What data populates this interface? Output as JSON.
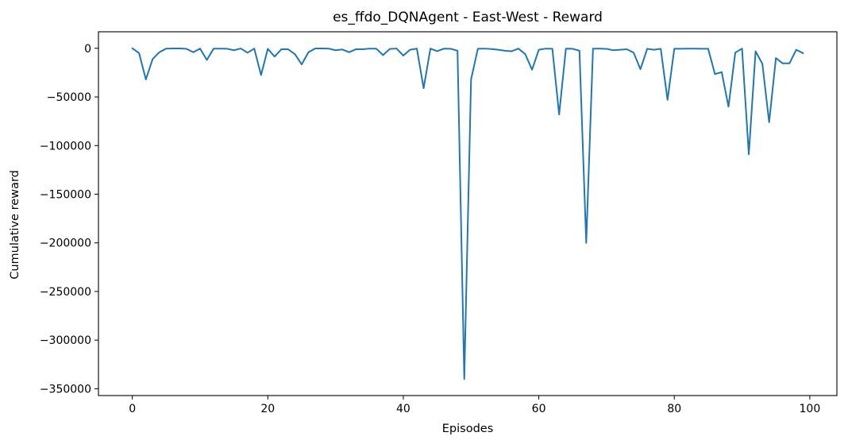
{
  "chart_data": {
    "type": "line",
    "title": "es_ffdo_DQNAgent - East-West - Reward",
    "xlabel": "Episodes",
    "ylabel": "Cumulative reward",
    "xlim": [
      -5,
      104
    ],
    "ylim": [
      -357000,
      17000
    ],
    "xticks": [
      0,
      20,
      40,
      60,
      80,
      100
    ],
    "xtick_labels": [
      "0",
      "20",
      "40",
      "60",
      "80",
      "100"
    ],
    "yticks": [
      0,
      -50000,
      -100000,
      -150000,
      -200000,
      -250000,
      -300000,
      -350000
    ],
    "ytick_labels": [
      "0",
      "−50000",
      "−100000",
      "−150000",
      "−200000",
      "−250000",
      "−300000",
      "−350000"
    ],
    "grid": false,
    "series": [
      {
        "color": "#1f77b4",
        "x": [
          0,
          1,
          2,
          3,
          4,
          5,
          6,
          7,
          8,
          9,
          10,
          11,
          12,
          13,
          14,
          15,
          16,
          17,
          18,
          19,
          20,
          21,
          22,
          23,
          24,
          25,
          26,
          27,
          28,
          29,
          30,
          31,
          32,
          33,
          34,
          35,
          36,
          37,
          38,
          39,
          40,
          41,
          42,
          43,
          44,
          45,
          46,
          47,
          48,
          49,
          50,
          51,
          52,
          53,
          54,
          55,
          56,
          57,
          58,
          59,
          60,
          61,
          62,
          63,
          64,
          65,
          66,
          67,
          68,
          69,
          70,
          71,
          72,
          73,
          74,
          75,
          76,
          77,
          78,
          79,
          80,
          81,
          82,
          83,
          84,
          85,
          86,
          87,
          88,
          89,
          90,
          91,
          92,
          93,
          94,
          95,
          96,
          97,
          98,
          99
        ],
        "y": [
          0,
          -5000,
          -32000,
          -11000,
          -4000,
          -300,
          -200,
          -200,
          -600,
          -4000,
          -300,
          -12000,
          -300,
          -300,
          -500,
          -2000,
          -200,
          -4500,
          -300,
          -27500,
          -500,
          -8500,
          -1000,
          -1000,
          -6000,
          -16500,
          -4000,
          -200,
          -200,
          -300,
          -2000,
          -1200,
          -4000,
          -1000,
          -1000,
          -300,
          -300,
          -7000,
          -700,
          -200,
          -7500,
          -1500,
          -300,
          -41000,
          -300,
          -3000,
          -300,
          -500,
          -2500,
          -340000,
          -32000,
          -500,
          -300,
          -800,
          -1500,
          -2500,
          -3000,
          -300,
          -6000,
          -22000,
          -1500,
          -300,
          -500,
          -68000,
          -300,
          -500,
          -2500,
          -200000,
          -300,
          -300,
          -600,
          -2000,
          -1500,
          -1000,
          -4500,
          -21500,
          -500,
          -1500,
          -500,
          -53000,
          -500,
          -500,
          -300,
          -300,
          -500,
          -500,
          -26500,
          -24500,
          -60000,
          -4500,
          -300,
          -109000,
          -3000,
          -16000,
          -76000,
          -10000,
          -15500,
          -15500,
          -1500,
          -5000
        ]
      }
    ]
  }
}
